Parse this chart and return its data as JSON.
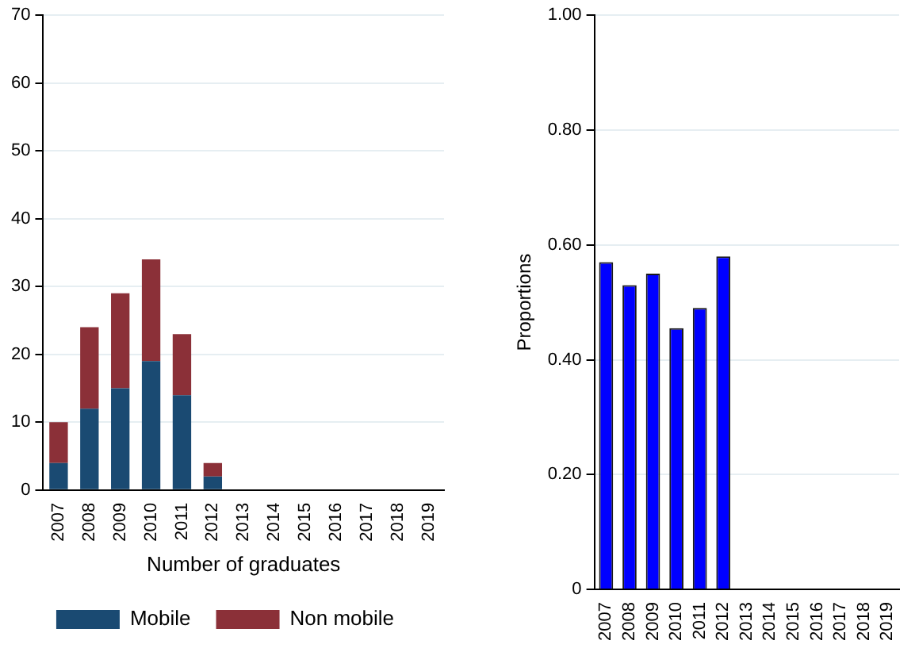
{
  "chart_data": [
    {
      "type": "bar",
      "stacked": true,
      "xlabel": "Number of graduates",
      "categories": [
        "2007",
        "2008",
        "2009",
        "2010",
        "2011",
        "2012",
        "2013",
        "2014",
        "2015",
        "2016",
        "2017",
        "2018",
        "2019"
      ],
      "series": [
        {
          "name": "Mobile",
          "color": "#1a4a72",
          "values": [
            4,
            12,
            15,
            19,
            14,
            2,
            null,
            null,
            null,
            null,
            null,
            null,
            null
          ]
        },
        {
          "name": "Non mobile",
          "color": "#8b3038",
          "values": [
            6,
            12,
            14,
            15,
            9,
            2,
            null,
            null,
            null,
            null,
            null,
            null,
            null
          ]
        }
      ],
      "ylim": [
        0,
        70
      ],
      "yticks": [
        0,
        10,
        20,
        30,
        40,
        50,
        60,
        70
      ],
      "grid": "y",
      "legend": "bottom"
    },
    {
      "type": "bar",
      "ylabel": "Proportions",
      "categories": [
        "2007",
        "2008",
        "2009",
        "2010",
        "2011",
        "2012",
        "2013",
        "2014",
        "2015",
        "2016",
        "2017",
        "2018",
        "2019"
      ],
      "series": [
        {
          "color": "#0000ff",
          "values": [
            0.57,
            0.53,
            0.55,
            0.455,
            0.49,
            0.58,
            null,
            null,
            null,
            null,
            null,
            null,
            null
          ]
        }
      ],
      "ylim": [
        0,
        1
      ],
      "yticks": [
        {
          "value": 0,
          "label": "0"
        },
        {
          "value": 0.2,
          "label": "0.20"
        },
        {
          "value": 0.4,
          "label": "0.40"
        },
        {
          "value": 0.6,
          "label": "0.60"
        },
        {
          "value": 0.8,
          "label": "0.80"
        },
        {
          "value": 1,
          "label": "1.00"
        }
      ],
      "grid": "y"
    }
  ]
}
